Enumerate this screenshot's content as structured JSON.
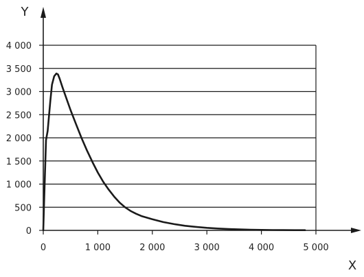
{
  "chart_data": {
    "type": "line",
    "xlabel": "X",
    "ylabel": "Y",
    "xlim": [
      0,
      5000
    ],
    "ylim": [
      0,
      4000
    ],
    "x_ticks": [
      0,
      1000,
      2000,
      3000,
      4000,
      5000
    ],
    "x_tick_labels": [
      "0",
      "1 000",
      "2 000",
      "3 000",
      "4 000",
      "5 000"
    ],
    "y_ticks": [
      0,
      500,
      1000,
      1500,
      2000,
      2500,
      3000,
      3500,
      4000
    ],
    "y_tick_labels": [
      "0",
      "500",
      "1 000",
      "1 500",
      "2 000",
      "2 500",
      "3 000",
      "3 500",
      "4 000"
    ],
    "grid": "horizontal",
    "series": [
      {
        "x": [
          0,
          20,
          50,
          80,
          100,
          130,
          160,
          200,
          240,
          270,
          300,
          350,
          400,
          500,
          600,
          700,
          800,
          900,
          1000,
          1100,
          1200,
          1300,
          1400,
          1500,
          1600,
          1700,
          1800,
          2000,
          2200,
          2400,
          2600,
          2800,
          3000,
          3200,
          3400,
          3600,
          3800,
          4000,
          4200,
          4400,
          4600,
          4800
        ],
        "y": [
          0,
          800,
          1950,
          2150,
          2400,
          2800,
          3150,
          3330,
          3390,
          3370,
          3280,
          3100,
          2930,
          2600,
          2300,
          2000,
          1730,
          1480,
          1250,
          1050,
          880,
          730,
          600,
          500,
          420,
          360,
          310,
          240,
          180,
          135,
          100,
          75,
          55,
          40,
          28,
          20,
          14,
          10,
          8,
          6,
          5,
          5
        ]
      }
    ],
    "colors": {
      "line": "#1a1a1a",
      "grid": "#1a1a1a",
      "text": "#222222"
    }
  }
}
